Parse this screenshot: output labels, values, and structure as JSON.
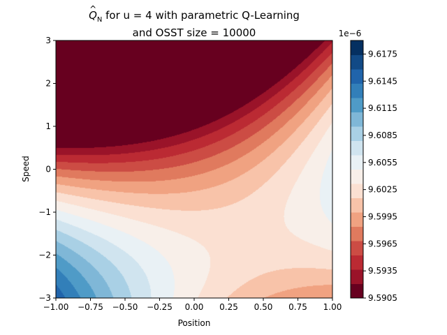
{
  "chart_data": {
    "type": "heatmap",
    "title_prefix": "Q",
    "title_subscript": "N",
    "title_line1_rest": " for u = 4 with parametric Q-Learning",
    "title_line2": "and OSST size = 10000",
    "xlabel": "Position",
    "ylabel": "Speed",
    "xlim": [
      -1.0,
      1.0
    ],
    "ylim": [
      -3,
      3
    ],
    "x_ticks": [
      "−1.00",
      "−0.75",
      "−0.50",
      "−0.25",
      "0.00",
      "0.25",
      "0.50",
      "0.75",
      "1.00"
    ],
    "y_ticks": [
      "−3",
      "−2",
      "−1",
      "0",
      "1",
      "2",
      "3"
    ],
    "colormap": "RdBu",
    "colorbar": {
      "multiplier_label": "1e−6",
      "min": 9.5905,
      "max": 9.619,
      "step": 0.0015,
      "tick_labels": [
        "9.5905",
        "9.5935",
        "9.5965",
        "9.5995",
        "9.6025",
        "9.6055",
        "9.6085",
        "9.6115",
        "9.6145",
        "9.6175"
      ],
      "colors": [
        "#67001f",
        "#9a1329",
        "#bb2a33",
        "#cc4c44",
        "#e07a5e",
        "#f0a281",
        "#f8c3a9",
        "#fbe0d2",
        "#f8efe9",
        "#e9f1f5",
        "#d0e4ef",
        "#a9d0e5",
        "#7fb7d7",
        "#4f9bc7",
        "#327fb9",
        "#2064ab",
        "#124a86",
        "#053061"
      ]
    },
    "surface": {
      "description": "Q(p,v) approx base - a*p + b*v + c*(v+2)*p + e*p*p + f*v*v (1e-6 units)",
      "base": 9.5973,
      "a": 0.004,
      "b": -0.0048,
      "c": 0.004,
      "e": 0.0033,
      "f": -0.001
    },
    "grid": false
  }
}
